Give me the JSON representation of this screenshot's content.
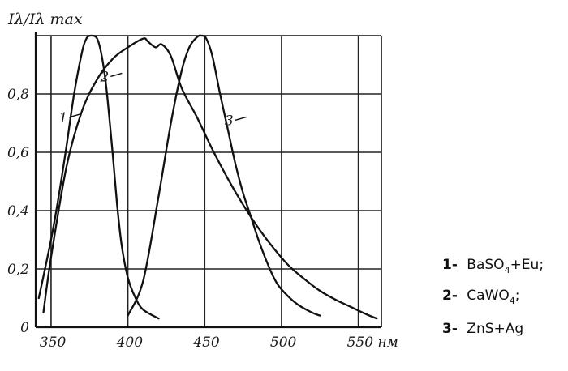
{
  "chart_data": {
    "type": "line",
    "ylabel": "Iλ/Iλ max",
    "xlabel": "нм",
    "xlim": [
      340,
      565
    ],
    "ylim": [
      0,
      1.0
    ],
    "x_ticks": [
      350,
      400,
      450,
      500,
      550
    ],
    "x_tick_labels": [
      "350",
      "400",
      "450",
      "500",
      "550 нм"
    ],
    "y_ticks": [
      0,
      0.2,
      0.4,
      0.6,
      0.8
    ],
    "y_tick_labels": [
      "0",
      "0,2",
      "0,4",
      "0,6",
      "0,8"
    ],
    "grid": true,
    "series": [
      {
        "name": "1",
        "points": [
          [
            342,
            0.1
          ],
          [
            350,
            0.3
          ],
          [
            355,
            0.45
          ],
          [
            360,
            0.62
          ],
          [
            365,
            0.8
          ],
          [
            370,
            0.94
          ],
          [
            373,
            0.99
          ],
          [
            376,
            1.0
          ],
          [
            380,
            0.99
          ],
          [
            383,
            0.93
          ],
          [
            386,
            0.82
          ],
          [
            390,
            0.6
          ],
          [
            393,
            0.42
          ],
          [
            396,
            0.28
          ],
          [
            400,
            0.17
          ],
          [
            405,
            0.1
          ],
          [
            410,
            0.06
          ],
          [
            420,
            0.03
          ]
        ]
      },
      {
        "name": "2",
        "points": [
          [
            345,
            0.05
          ],
          [
            350,
            0.24
          ],
          [
            360,
            0.55
          ],
          [
            370,
            0.74
          ],
          [
            380,
            0.85
          ],
          [
            390,
            0.92
          ],
          [
            400,
            0.96
          ],
          [
            410,
            0.99
          ],
          [
            413,
            0.98
          ],
          [
            418,
            0.96
          ],
          [
            422,
            0.97
          ],
          [
            428,
            0.93
          ],
          [
            435,
            0.82
          ],
          [
            445,
            0.72
          ],
          [
            455,
            0.61
          ],
          [
            465,
            0.51
          ],
          [
            475,
            0.42
          ],
          [
            485,
            0.34
          ],
          [
            495,
            0.27
          ],
          [
            505,
            0.21
          ],
          [
            515,
            0.165
          ],
          [
            525,
            0.125
          ],
          [
            535,
            0.095
          ],
          [
            545,
            0.07
          ],
          [
            555,
            0.045
          ],
          [
            562,
            0.03
          ]
        ]
      },
      {
        "name": "3",
        "points": [
          [
            400,
            0.04
          ],
          [
            410,
            0.16
          ],
          [
            420,
            0.45
          ],
          [
            428,
            0.7
          ],
          [
            435,
            0.88
          ],
          [
            440,
            0.96
          ],
          [
            445,
            0.995
          ],
          [
            448,
            1.0
          ],
          [
            451,
            0.99
          ],
          [
            455,
            0.93
          ],
          [
            460,
            0.8
          ],
          [
            465,
            0.68
          ],
          [
            470,
            0.56
          ],
          [
            475,
            0.46
          ],
          [
            480,
            0.38
          ],
          [
            485,
            0.3
          ],
          [
            490,
            0.23
          ],
          [
            495,
            0.17
          ],
          [
            500,
            0.13
          ],
          [
            510,
            0.08
          ],
          [
            520,
            0.05
          ],
          [
            525,
            0.04
          ]
        ]
      }
    ],
    "curve_labels": [
      {
        "id": "1",
        "text": "1",
        "at": [
          366,
          0.72
        ]
      },
      {
        "id": "2",
        "text": "2",
        "at": [
          393,
          0.86
        ]
      },
      {
        "id": "3",
        "text": "3",
        "at": [
          474,
          0.71
        ]
      }
    ],
    "legend_position": "right",
    "legend": [
      {
        "num": "1-",
        "formula": "BaSO",
        "sub": "4",
        "rest": "+Eu;"
      },
      {
        "num": "2-",
        "formula": "CaWO",
        "sub": "4",
        "rest": ";"
      },
      {
        "num": "3-",
        "formula": "ZnS+Ag",
        "sub": "",
        "rest": ""
      }
    ]
  }
}
